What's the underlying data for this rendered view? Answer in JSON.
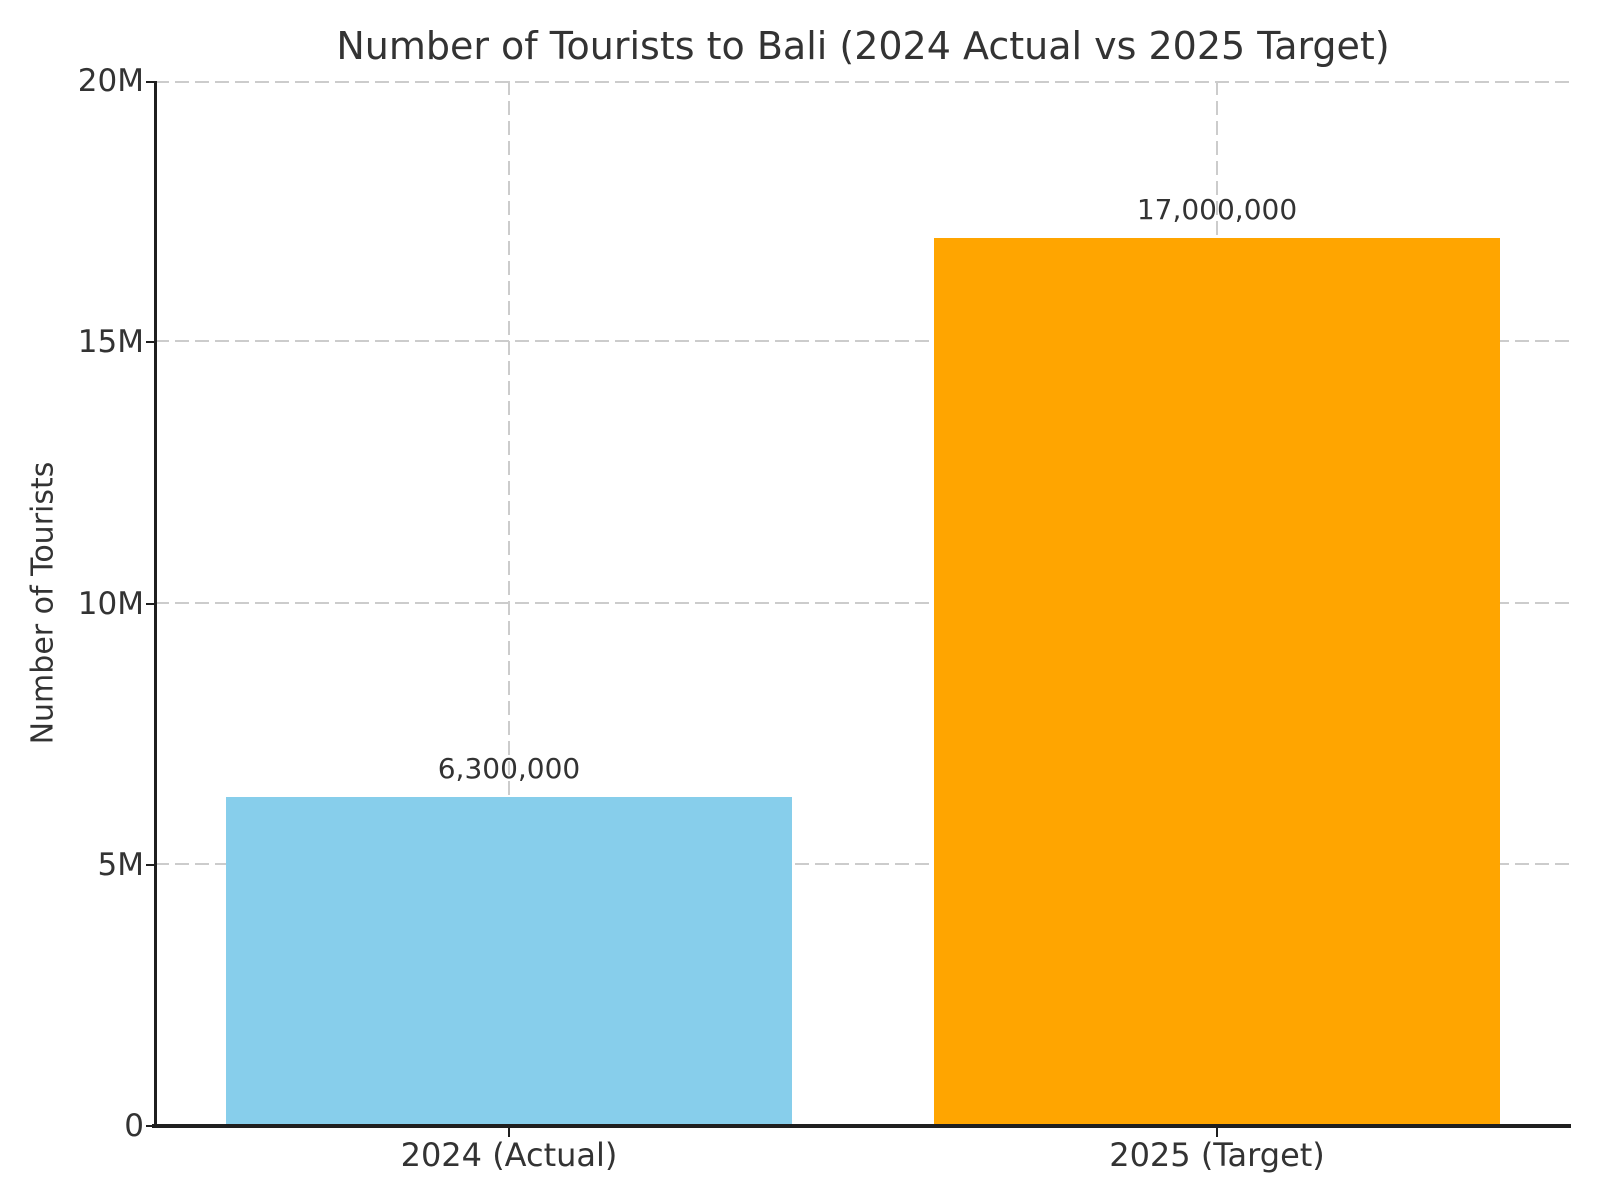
{
  "chart_data": {
    "type": "bar",
    "title": "Number of Tourists to Bali (2024 Actual vs 2025 Target)",
    "categories": [
      "2024 (Actual)",
      "2025 (Target)"
    ],
    "values": [
      6300000,
      17000000
    ],
    "value_labels": [
      "6,300,000",
      "17,000,000"
    ],
    "bar_colors": [
      "#87CEEB",
      "#FFA500"
    ],
    "xlabel": "",
    "ylabel": "Number of Tourists",
    "ylim": [
      0,
      20000000
    ],
    "yticks": {
      "values": [
        0,
        5000000,
        10000000,
        15000000,
        20000000
      ],
      "labels": [
        "0",
        "5M",
        "10M",
        "15M",
        "20M"
      ]
    },
    "grid": "dashed",
    "legend_position": "none",
    "colors": {
      "text": "#333333",
      "axis": "#1f1f1f",
      "grid": "#cccccc"
    }
  }
}
